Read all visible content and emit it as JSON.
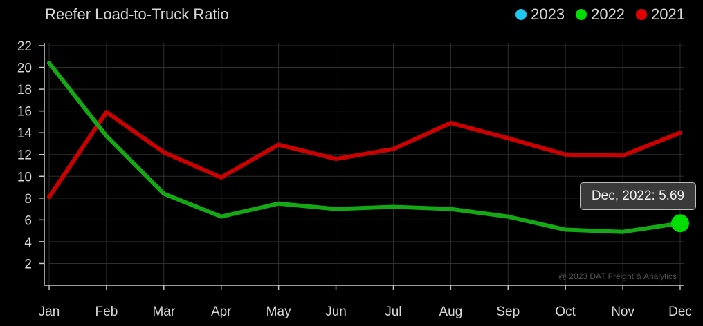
{
  "chart_data": {
    "type": "line",
    "title": "Reefer Load-to-Truck Ratio",
    "categories": [
      "Jan",
      "Feb",
      "Mar",
      "Apr",
      "May",
      "Jun",
      "Jul",
      "Aug",
      "Sep",
      "Oct",
      "Nov",
      "Dec"
    ],
    "ylim": [
      0,
      22
    ],
    "yticks": [
      2,
      4,
      6,
      8,
      10,
      12,
      14,
      16,
      18,
      20,
      22
    ],
    "grid": true,
    "legend_position": "top-right",
    "legend": [
      {
        "name": "2023",
        "color": "#1fc8f0"
      },
      {
        "name": "2022",
        "color": "#00dd00"
      },
      {
        "name": "2021",
        "color": "#e00000"
      }
    ],
    "series": [
      {
        "name": "2022",
        "color": "#14a814",
        "values": [
          20.4,
          13.7,
          8.4,
          6.3,
          7.5,
          7.0,
          7.2,
          7.0,
          6.3,
          5.1,
          4.9,
          5.69
        ]
      },
      {
        "name": "2021",
        "color": "#cc0000",
        "values": [
          8.1,
          15.9,
          12.2,
          9.9,
          12.9,
          11.6,
          12.5,
          14.9,
          13.5,
          12.0,
          11.9,
          14.0
        ]
      }
    ],
    "tooltip": "Dec, 2022: 5.69",
    "highlight": {
      "series": "2022",
      "category": "Dec",
      "value": 5.69,
      "color": "#00dd00"
    },
    "credit": "@ 2023 DAT Freight & Analytics"
  }
}
